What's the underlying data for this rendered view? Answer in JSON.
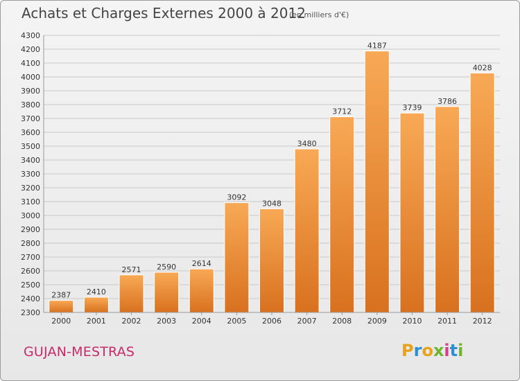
{
  "header": {
    "title": "Achats et Charges Externes 2000 à 2012",
    "subtitle": "(en milliers d'€)"
  },
  "footer": {
    "place": "GUJAN-MESTRAS",
    "brand": {
      "letters": [
        "P",
        "r",
        "o",
        "x",
        "i",
        "t",
        "i"
      ],
      "colors": [
        "#e8a21a",
        "#2b8fd6",
        "#e8a21a",
        "#6fb52c",
        "#d93a8a",
        "#2b8fd6",
        "#6fb52c"
      ]
    }
  },
  "chart_data": {
    "type": "bar",
    "title": "Achats et Charges Externes 2000 à 2012",
    "subtitle": "(en milliers d'€)",
    "categories": [
      "2000",
      "2001",
      "2002",
      "2003",
      "2004",
      "2005",
      "2006",
      "2007",
      "2008",
      "2009",
      "2010",
      "2011",
      "2012"
    ],
    "values": [
      2387,
      2410,
      2571,
      2590,
      2614,
      3092,
      3048,
      3480,
      3712,
      4187,
      3739,
      3786,
      4028
    ],
    "ylim": [
      2300,
      4300
    ],
    "yticks": [
      2300,
      2400,
      2500,
      2600,
      2700,
      2800,
      2900,
      3000,
      3100,
      3200,
      3300,
      3400,
      3500,
      3600,
      3700,
      3800,
      3900,
      4000,
      4100,
      4200,
      4300
    ],
    "grid": true,
    "bar_color": "#f19a3c"
  }
}
